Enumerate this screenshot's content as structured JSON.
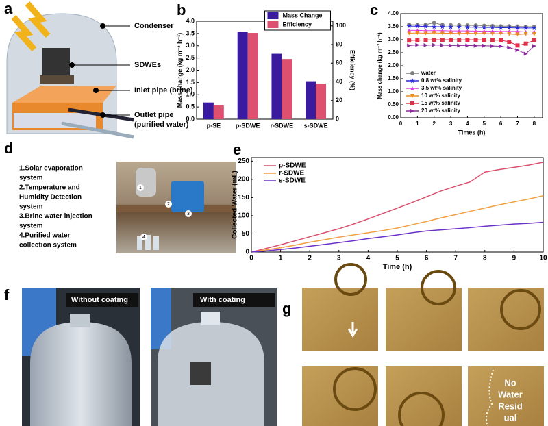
{
  "panel_labels": [
    "a",
    "b",
    "c",
    "d",
    "e",
    "f",
    "g"
  ],
  "panel_a": {
    "labels": [
      "Condenser",
      "SDWEs",
      "Inlet pipe (brine)",
      "Outlet pipe",
      "(purified water)"
    ]
  },
  "panel_d": {
    "list": [
      "1.Solar evaporation",
      "system",
      "2.Temperature and",
      "Humidity Detection",
      "system",
      "3.Brine water injection",
      "system",
      "4.Purified water",
      "collection system"
    ],
    "markers": [
      "1",
      "2",
      "3",
      "4"
    ]
  },
  "panel_f": {
    "captions": [
      "Without coating",
      "With coating"
    ]
  },
  "panel_g": {
    "annotation": [
      "No",
      "Water",
      "Resid",
      "ual"
    ]
  },
  "chart_data": [
    {
      "type": "bar",
      "ylabel": "Mass change (kg m⁻² h⁻¹)",
      "y2label": "Efficiency (%)",
      "categories": [
        "p-SE",
        "p-SDWE",
        "r-SDWE",
        "s-SDWE"
      ],
      "series": [
        {
          "name": "Mass Change",
          "color": "#3a1a9e",
          "values": [
            0.68,
            3.58,
            2.67,
            1.55
          ]
        },
        {
          "name": "Efficiency",
          "color": "#de5070",
          "axis": "y2",
          "values": [
            14.7,
            92.5,
            64.5,
            38.2
          ]
        }
      ],
      "ylim": [
        0,
        4
      ],
      "yticks": [
        {
          "value": 0,
          "label": "0.0"
        },
        {
          "value": 0.5,
          "label": "0.5"
        },
        {
          "value": 1,
          "label": "1.0"
        },
        {
          "value": 1.5,
          "label": "1.5"
        },
        {
          "value": 2,
          "label": "2.0"
        },
        {
          "value": 2.5,
          "label": "2.5"
        },
        {
          "value": 3,
          "label": "3.0"
        },
        {
          "value": 3.5,
          "label": "3.5"
        },
        {
          "value": 4,
          "label": "4.0"
        }
      ],
      "y2lim": [
        0,
        105
      ],
      "y2ticks": [
        0,
        20,
        40,
        60,
        80,
        100
      ],
      "legend": "upper right"
    },
    {
      "type": "line",
      "xlabel": "Times (h)",
      "ylabel": "Mass change (kg m⁻² h⁻¹)",
      "x": [
        0.5,
        1,
        1.5,
        2,
        2.5,
        3,
        3.5,
        4,
        4.5,
        5,
        5.5,
        6,
        6.5,
        7,
        7.5,
        8
      ],
      "series": [
        {
          "name": "water",
          "color": "#808080",
          "marker": "circle",
          "values": [
            3.58,
            3.57,
            3.58,
            3.65,
            3.57,
            3.56,
            3.56,
            3.55,
            3.55,
            3.54,
            3.53,
            3.52,
            3.52,
            3.51,
            3.5,
            3.5
          ]
        },
        {
          "name": "0.8 wt% salinity",
          "color": "#2a2ad8",
          "marker": "star",
          "values": [
            3.52,
            3.52,
            3.51,
            3.5,
            3.5,
            3.49,
            3.49,
            3.48,
            3.48,
            3.47,
            3.47,
            3.46,
            3.46,
            3.45,
            3.45,
            3.45
          ]
        },
        {
          "name": "3.5 wt% salinity",
          "color": "#e040e0",
          "marker": "triangle-up",
          "values": [
            3.36,
            3.36,
            3.35,
            3.35,
            3.35,
            3.34,
            3.34,
            3.34,
            3.33,
            3.33,
            3.33,
            3.32,
            3.32,
            3.32,
            3.3,
            3.31
          ]
        },
        {
          "name": "10 wt% salinity",
          "color": "#f08a1c",
          "marker": "triangle-down",
          "values": [
            3.25,
            3.26,
            3.25,
            3.26,
            3.25,
            3.25,
            3.24,
            3.25,
            3.24,
            3.24,
            3.23,
            3.24,
            3.22,
            3.2,
            3.22,
            3.22
          ]
        },
        {
          "name": "15 wt% salinity",
          "color": "#e0304a",
          "marker": "square",
          "values": [
            2.97,
            2.98,
            2.99,
            3.0,
            3.0,
            3.0,
            2.99,
            3.0,
            3.0,
            2.99,
            2.98,
            2.98,
            2.92,
            2.78,
            2.85,
            2.98
          ]
        },
        {
          "name": "20 wt% salinity",
          "color": "#8a2a9a",
          "marker": "triangle-right",
          "values": [
            2.78,
            2.8,
            2.79,
            2.8,
            2.79,
            2.78,
            2.78,
            2.78,
            2.77,
            2.77,
            2.76,
            2.75,
            2.7,
            2.6,
            2.46,
            2.76
          ]
        }
      ],
      "xlim": [
        0,
        8.5
      ],
      "xticks": [
        0,
        1,
        2,
        3,
        4,
        5,
        6,
        7,
        8
      ],
      "ylim": [
        0,
        4
      ],
      "yticks": [
        {
          "value": 0,
          "label": "0.00"
        },
        {
          "value": 0.5,
          "label": "0.50"
        },
        {
          "value": 1,
          "label": "1.00"
        },
        {
          "value": 1.5,
          "label": "1.50"
        },
        {
          "value": 2,
          "label": "2.00"
        },
        {
          "value": 2.5,
          "label": "2.50"
        },
        {
          "value": 3,
          "label": "3.00"
        },
        {
          "value": 3.5,
          "label": "3.50"
        },
        {
          "value": 4,
          "label": "4.00"
        }
      ],
      "legend": "lower left"
    },
    {
      "type": "line",
      "xlabel": "Time (h)",
      "ylabel": "Collected Water (mL)",
      "x": [
        0,
        0.5,
        1,
        1.5,
        2,
        2.5,
        3,
        3.5,
        4,
        4.5,
        5,
        5.5,
        6,
        6.5,
        7,
        7.5,
        8,
        8.5,
        9,
        9.5,
        10
      ],
      "series": [
        {
          "name": "p-SDWE",
          "color": "#d8506e",
          "values": [
            0,
            10,
            20,
            31,
            42,
            53,
            64,
            77,
            91,
            106,
            121,
            136,
            152,
            168,
            181,
            193,
            220,
            227,
            233,
            239,
            247
          ]
        },
        {
          "name": "r-SDWE",
          "color": "#f0a040",
          "values": [
            0,
            6,
            12,
            19,
            27,
            34,
            41,
            47,
            53,
            59,
            66,
            75,
            84,
            94,
            103,
            112,
            121,
            130,
            138,
            146,
            155
          ]
        },
        {
          "name": "s-SDWE",
          "color": "#6a30c8",
          "values": [
            0,
            3,
            7,
            11,
            16,
            21,
            26,
            31,
            37,
            42,
            47,
            53,
            58,
            61,
            64,
            67,
            71,
            74,
            77,
            79,
            82
          ]
        }
      ],
      "xlim": [
        0,
        10
      ],
      "xticks": [
        0,
        1,
        2,
        3,
        4,
        5,
        6,
        7,
        8,
        9,
        10
      ],
      "ylim": [
        0,
        260
      ],
      "yticks": [
        0,
        50,
        100,
        150,
        200,
        250
      ],
      "legend": "upper left"
    }
  ]
}
